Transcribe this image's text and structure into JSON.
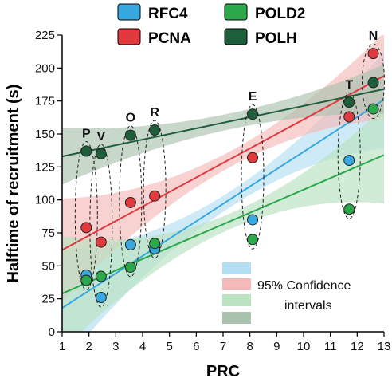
{
  "chart_data": {
    "type": "scatter",
    "xlabel": "PRC",
    "ylabel": "Halftime of recruitment (s)",
    "xlim": [
      1,
      13
    ],
    "ylim": [
      0,
      225
    ],
    "x_ticks": [
      1,
      2,
      3,
      4,
      5,
      6,
      7,
      8,
      9,
      10,
      11,
      12,
      13
    ],
    "y_ticks": [
      0,
      25,
      50,
      75,
      100,
      125,
      150,
      175,
      200,
      225
    ],
    "grid": false,
    "legend_position": "top",
    "series": [
      {
        "name": "RFC4",
        "color": "#3aa8e0",
        "band_color": "#b3def3",
        "x": [
          1.9,
          2.45,
          3.55,
          4.45,
          8.1,
          11.7
        ],
        "y": [
          43,
          26,
          66,
          63,
          85,
          130
        ],
        "fit": {
          "x": [
            1,
            13
          ],
          "y": [
            18,
            176
          ]
        }
      },
      {
        "name": "PCNA",
        "color": "#e03a3e",
        "band_color": "#f5b9b9",
        "x": [
          1.9,
          2.45,
          3.55,
          4.45,
          8.1,
          11.7,
          12.6
        ],
        "y": [
          79,
          68,
          98,
          103,
          132,
          163,
          211
        ],
        "fit": {
          "x": [
            1,
            13
          ],
          "y": [
            62,
            194
          ]
        }
      },
      {
        "name": "POLD2",
        "color": "#2aa84a",
        "band_color": "#b8e2c0",
        "x": [
          1.9,
          2.45,
          3.55,
          4.45,
          8.1,
          11.7,
          12.6
        ],
        "y": [
          39,
          42,
          49,
          67,
          70,
          93,
          169
        ],
        "fit": {
          "x": [
            1,
            13
          ],
          "y": [
            29,
            134
          ]
        }
      },
      {
        "name": "POLH",
        "color": "#1e5e3a",
        "band_color": "#a9c2ae",
        "x": [
          1.9,
          2.45,
          3.55,
          4.45,
          8.1,
          11.7,
          12.6
        ],
        "y": [
          137,
          135,
          149,
          153,
          165,
          174,
          189
        ],
        "fit": {
          "x": [
            1,
            13
          ],
          "y": [
            133,
            184
          ]
        }
      }
    ],
    "point_groups": [
      {
        "label": "P",
        "x": 1.9,
        "y_range": [
          39,
          137
        ]
      },
      {
        "label": "V",
        "x": 2.45,
        "y_range": [
          26,
          135
        ]
      },
      {
        "label": "O",
        "x": 3.55,
        "y_range": [
          49,
          149
        ]
      },
      {
        "label": "R",
        "x": 4.45,
        "y_range": [
          63,
          153
        ]
      },
      {
        "label": "E",
        "x": 8.1,
        "y_range": [
          70,
          165
        ]
      },
      {
        "label": "T",
        "x": 11.7,
        "y_range": [
          93,
          174
        ]
      },
      {
        "label": "N",
        "x": 12.6,
        "y_range": [
          169,
          211
        ]
      }
    ],
    "confidence_legend": {
      "label_line1": "95% Confidence",
      "label_line2": "intervals",
      "swatch_colors": [
        "#b3def3",
        "#f5b9b9",
        "#b8e2c0",
        "#a9c2ae"
      ]
    }
  }
}
